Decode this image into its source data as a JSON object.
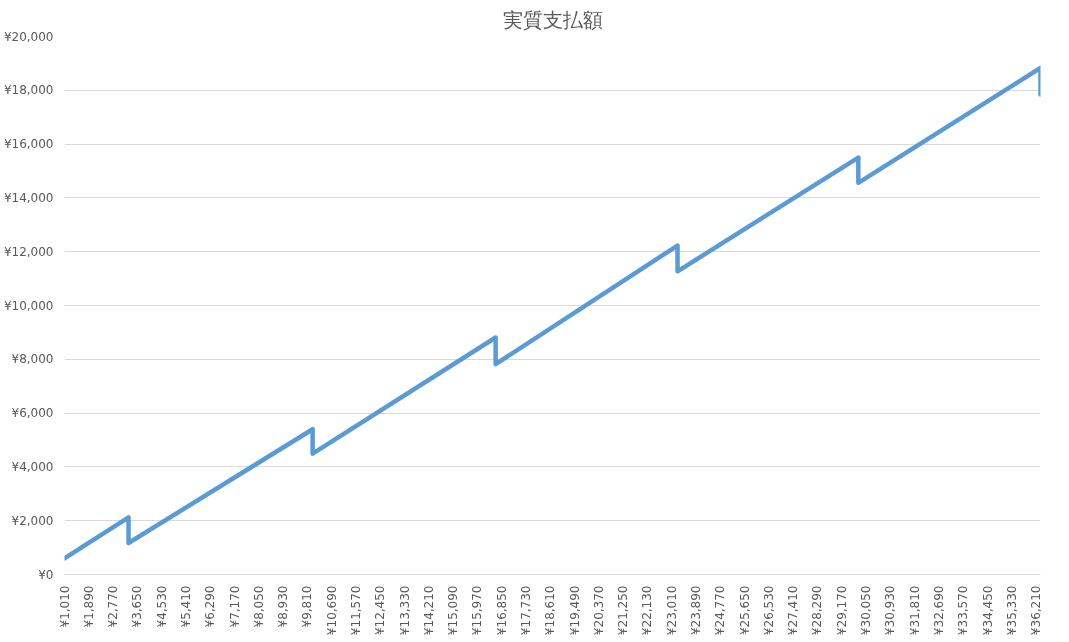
{
  "chart_data": {
    "type": "line",
    "title": "実質支払額",
    "x": [
      1010,
      3330,
      3330,
      10000,
      10000,
      16630,
      16630,
      23220,
      23220,
      29770,
      29770,
      36370,
      36370
    ],
    "series": [
      {
        "color": "#5b9bd5",
        "values": [
          600,
          2120,
          1170,
          5400,
          4490,
          8810,
          7820,
          12230,
          11270,
          15500,
          14560,
          18830,
          17840
        ]
      }
    ],
    "xlim": [
      1010,
      36370
    ],
    "xticks": [
      {
        "value": 1010,
        "label": "¥1,010"
      },
      {
        "value": 1890,
        "label": "¥1,890"
      },
      {
        "value": 2770,
        "label": "¥2,770"
      },
      {
        "value": 3650,
        "label": "¥3,650"
      },
      {
        "value": 4530,
        "label": "¥4,530"
      },
      {
        "value": 5410,
        "label": "¥5,410"
      },
      {
        "value": 6290,
        "label": "¥6,290"
      },
      {
        "value": 7170,
        "label": "¥7,170"
      },
      {
        "value": 8050,
        "label": "¥8,050"
      },
      {
        "value": 8930,
        "label": "¥8,930"
      },
      {
        "value": 9810,
        "label": "¥9,810"
      },
      {
        "value": 10690,
        "label": "¥10,690"
      },
      {
        "value": 11570,
        "label": "¥11,570"
      },
      {
        "value": 12450,
        "label": "¥12,450"
      },
      {
        "value": 13330,
        "label": "¥13,330"
      },
      {
        "value": 14210,
        "label": "¥14,210"
      },
      {
        "value": 15090,
        "label": "¥15,090"
      },
      {
        "value": 15970,
        "label": "¥15,970"
      },
      {
        "value": 16850,
        "label": "¥16,850"
      },
      {
        "value": 17730,
        "label": "¥17,730"
      },
      {
        "value": 18610,
        "label": "¥18,610"
      },
      {
        "value": 19490,
        "label": "¥19,490"
      },
      {
        "value": 20370,
        "label": "¥20,370"
      },
      {
        "value": 21250,
        "label": "¥21,250"
      },
      {
        "value": 22130,
        "label": "¥22,130"
      },
      {
        "value": 23010,
        "label": "¥23,010"
      },
      {
        "value": 23890,
        "label": "¥23,890"
      },
      {
        "value": 24770,
        "label": "¥24,770"
      },
      {
        "value": 25650,
        "label": "¥25,650"
      },
      {
        "value": 26530,
        "label": "¥26,530"
      },
      {
        "value": 27410,
        "label": "¥27,410"
      },
      {
        "value": 28290,
        "label": "¥28,290"
      },
      {
        "value": 29170,
        "label": "¥29,170"
      },
      {
        "value": 30050,
        "label": "¥30,050"
      },
      {
        "value": 30930,
        "label": "¥30,930"
      },
      {
        "value": 31810,
        "label": "¥31,810"
      },
      {
        "value": 32690,
        "label": "¥32,690"
      },
      {
        "value": 33570,
        "label": "¥33,570"
      },
      {
        "value": 34450,
        "label": "¥34,450"
      },
      {
        "value": 35330,
        "label": "¥35,330"
      },
      {
        "value": 36210,
        "label": "¥36,210"
      }
    ],
    "ylim": [
      0,
      20000
    ],
    "yticks": [
      {
        "value": 0,
        "label": "¥0"
      },
      {
        "value": 2000,
        "label": "¥2,000"
      },
      {
        "value": 4000,
        "label": "¥4,000"
      },
      {
        "value": 6000,
        "label": "¥6,000"
      },
      {
        "value": 8000,
        "label": "¥8,000"
      },
      {
        "value": 10000,
        "label": "¥10,000"
      },
      {
        "value": 12000,
        "label": "¥12,000"
      },
      {
        "value": 14000,
        "label": "¥14,000"
      },
      {
        "value": 16000,
        "label": "¥16,000"
      },
      {
        "value": 18000,
        "label": "¥18,000"
      },
      {
        "value": 20000,
        "label": "¥20,000"
      }
    ],
    "grid": "y",
    "marker": "none",
    "line_style": "solid"
  }
}
